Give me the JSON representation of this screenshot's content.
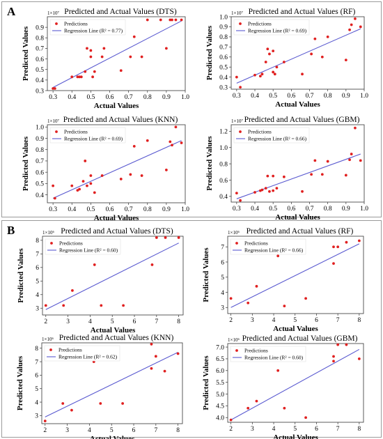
{
  "panels": [
    {
      "label": "A"
    },
    {
      "label": "B"
    }
  ],
  "legend": {
    "predictions": "Predictions"
  },
  "colors": {
    "points": "#e02020",
    "line": "#5a5ad0",
    "frame": "#333333"
  },
  "chart_data": [
    {
      "type": "scatter",
      "title": "Predicted and Actual Values (DTS)",
      "xlabel": "Actual Values",
      "ylabel": "Predicted Values",
      "multiplier": "1×10⁷",
      "regression_label": "Regression Line (R² = 0.77)",
      "xlim": [
        0.27,
        1.0
      ],
      "ylim": [
        0.3,
        1.0
      ],
      "xticks": [
        0.3,
        0.4,
        0.5,
        0.6,
        0.7,
        0.8,
        0.9,
        1.0
      ],
      "xticklabels": [
        "0.3",
        "0.4",
        "0.5",
        "0.6",
        "0.7",
        "0.8",
        "0.9",
        "1.0"
      ],
      "yticks": [
        0.3,
        0.4,
        0.5,
        0.6,
        0.7,
        0.8,
        0.9
      ],
      "yticklabels": [
        "0.3",
        "0.4",
        "0.5",
        "0.6",
        "0.7",
        "0.8",
        "0.9"
      ],
      "points": {
        "x": [
          0.3,
          0.31,
          0.4,
          0.43,
          0.44,
          0.45,
          0.47,
          0.48,
          0.5,
          0.5,
          0.51,
          0.52,
          0.56,
          0.57,
          0.66,
          0.71,
          0.73,
          0.77,
          0.8,
          0.87,
          0.9,
          0.92,
          0.93,
          0.95,
          0.98
        ],
        "y": [
          0.32,
          0.32,
          0.43,
          0.43,
          0.43,
          0.43,
          0.48,
          0.7,
          0.68,
          0.62,
          0.43,
          0.48,
          0.62,
          0.7,
          0.49,
          0.62,
          0.81,
          0.62,
          0.97,
          0.97,
          0.7,
          0.97,
          0.97,
          0.97,
          0.97
        ]
      },
      "line": {
        "x": [
          0.3,
          0.98
        ],
        "y": [
          0.33,
          0.96
        ]
      }
    },
    {
      "type": "scatter",
      "title": "Predicted and Actual Values (RF)",
      "xlabel": "Actual Values",
      "ylabel": "Predicted Values",
      "multiplier": "1×10⁷",
      "regression_label": "Regression Line (R² = 0.69)",
      "xlim": [
        0.27,
        1.0
      ],
      "ylim": [
        0.28,
        1.0
      ],
      "xticks": [
        0.3,
        0.4,
        0.5,
        0.6,
        0.7,
        0.8,
        0.9,
        1.0
      ],
      "xticklabels": [
        "0.3",
        "0.4",
        "0.5",
        "0.6",
        "0.7",
        "0.8",
        "0.9",
        "1.0"
      ],
      "yticks": [
        0.3,
        0.4,
        0.5,
        0.6,
        0.7,
        0.8,
        0.9,
        1.0
      ],
      "yticklabels": [
        "0.3",
        "0.4",
        "0.5",
        "0.6",
        "0.7",
        "0.8",
        "0.9",
        "1.0"
      ],
      "points": {
        "x": [
          0.3,
          0.32,
          0.4,
          0.43,
          0.44,
          0.46,
          0.47,
          0.48,
          0.5,
          0.5,
          0.51,
          0.52,
          0.56,
          0.66,
          0.71,
          0.73,
          0.77,
          0.8,
          0.9,
          0.92,
          0.93,
          0.95,
          0.98
        ],
        "y": [
          0.4,
          0.3,
          0.42,
          0.41,
          0.43,
          0.55,
          0.68,
          0.63,
          0.45,
          0.66,
          0.43,
          0.5,
          0.55,
          0.43,
          0.63,
          0.78,
          0.6,
          0.8,
          0.57,
          0.87,
          0.92,
          0.98,
          0.9
        ]
      },
      "line": {
        "x": [
          0.3,
          0.98
        ],
        "y": [
          0.34,
          0.88
        ]
      }
    },
    {
      "type": "scatter",
      "title": "Predicted and Actual Values (KNN)",
      "xlabel": "Actual Values",
      "ylabel": "Predicted Values",
      "multiplier": "1×10⁷",
      "regression_label": "Regression Line (R² = 0.69)",
      "xlim": [
        0.27,
        1.0
      ],
      "ylim": [
        0.33,
        1.02
      ],
      "xticks": [
        0.3,
        0.4,
        0.5,
        0.6,
        0.7,
        0.8,
        0.9,
        1.0
      ],
      "xticklabels": [
        "0.3",
        "0.4",
        "0.5",
        "0.6",
        "0.7",
        "0.8",
        "0.9",
        "1.0"
      ],
      "yticks": [
        0.4,
        0.5,
        0.6,
        0.7,
        0.8,
        0.9,
        1.0
      ],
      "yticklabels": [
        "0.4",
        "0.5",
        "0.6",
        "0.7",
        "0.8",
        "0.9",
        "1.0"
      ],
      "points": {
        "x": [
          0.3,
          0.31,
          0.4,
          0.43,
          0.44,
          0.46,
          0.47,
          0.48,
          0.5,
          0.5,
          0.52,
          0.56,
          0.66,
          0.71,
          0.73,
          0.77,
          0.8,
          0.9,
          0.92,
          0.93,
          0.95,
          0.98
        ],
        "y": [
          0.48,
          0.37,
          0.48,
          0.44,
          0.45,
          0.52,
          0.7,
          0.48,
          0.57,
          0.5,
          0.42,
          0.57,
          0.54,
          0.58,
          0.83,
          0.57,
          0.88,
          0.62,
          0.87,
          0.84,
          1.0,
          0.86
        ]
      },
      "line": {
        "x": [
          0.3,
          0.98
        ],
        "y": [
          0.37,
          0.88
        ]
      }
    },
    {
      "type": "scatter",
      "title": "Predicted and Actual Values (GBM)",
      "xlabel": "Actual Values",
      "ylabel": "Predicted Values",
      "multiplier": "1×10⁷",
      "regression_label": "Regression Line (R² = 0.66)",
      "xlim": [
        0.27,
        1.0
      ],
      "ylim": [
        0.33,
        1.28
      ],
      "xticks": [
        0.3,
        0.4,
        0.5,
        0.6,
        0.7,
        0.8,
        0.9,
        1.0
      ],
      "xticklabels": [
        "0.3",
        "0.4",
        "0.5",
        "0.6",
        "0.7",
        "0.8",
        "0.9",
        "1.0"
      ],
      "yticks": [
        0.4,
        0.6,
        0.8,
        1.0,
        1.2
      ],
      "yticklabels": [
        "0.4",
        "0.6",
        "0.8",
        "1.0",
        "1.2"
      ],
      "points": {
        "x": [
          0.3,
          0.32,
          0.4,
          0.43,
          0.44,
          0.46,
          0.47,
          0.48,
          0.5,
          0.5,
          0.52,
          0.56,
          0.66,
          0.71,
          0.73,
          0.77,
          0.8,
          0.9,
          0.92,
          0.93,
          0.95,
          0.98
        ],
        "y": [
          0.44,
          0.35,
          0.45,
          0.47,
          0.48,
          0.5,
          0.65,
          0.46,
          0.65,
          0.47,
          0.5,
          0.64,
          0.46,
          0.67,
          0.84,
          0.67,
          0.83,
          0.66,
          0.85,
          0.92,
          1.24,
          0.84
        ]
      },
      "line": {
        "x": [
          0.3,
          0.98
        ],
        "y": [
          0.37,
          0.92
        ]
      }
    },
    {
      "type": "scatter",
      "title": "Predicted and Actual Values (DTS)",
      "xlabel": "Actual Values",
      "ylabel": "Predicted Values",
      "multiplier": "1×10⁶",
      "regression_label": "Regression Line (R² = 0.60)",
      "xlim": [
        1.85,
        8.2
      ],
      "ylim": [
        2.5,
        8.3
      ],
      "xticks": [
        2,
        3,
        4,
        5,
        6,
        7,
        8
      ],
      "xticklabels": [
        "2",
        "3",
        "4",
        "5",
        "6",
        "7",
        "8"
      ],
      "yticks": [
        3,
        4,
        5,
        6,
        7,
        8
      ],
      "yticklabels": [
        "3",
        "4",
        "5",
        "6",
        "7",
        "8"
      ],
      "points": {
        "x": [
          2.0,
          2.8,
          3.2,
          4.2,
          4.5,
          5.5,
          6.8,
          7.0,
          7.4,
          8.0
        ],
        "y": [
          3.2,
          3.2,
          4.3,
          6.2,
          3.2,
          3.2,
          6.2,
          8.2,
          8.2,
          8.2
        ]
      },
      "line": {
        "x": [
          2.0,
          8.0
        ],
        "y": [
          2.9,
          7.8
        ]
      }
    },
    {
      "type": "scatter",
      "title": "Predicted and Actual Values (RF)",
      "xlabel": "Actual Values",
      "ylabel": "Predicted Values",
      "multiplier": "1×10⁶",
      "regression_label": "Regression Line (R² = 0.66)",
      "xlim": [
        1.85,
        8.2
      ],
      "ylim": [
        2.6,
        7.7
      ],
      "xticks": [
        2,
        3,
        4,
        5,
        6,
        7,
        8
      ],
      "xticklabels": [
        "2",
        "3",
        "4",
        "5",
        "6",
        "7",
        "8"
      ],
      "yticks": [
        3,
        4,
        5,
        6,
        7
      ],
      "yticklabels": [
        "3",
        "4",
        "5",
        "6",
        "7"
      ],
      "points": {
        "x": [
          2.0,
          2.8,
          3.2,
          4.2,
          4.5,
          5.5,
          6.8,
          6.8,
          7.0,
          7.4,
          8.0
        ],
        "y": [
          3.6,
          3.3,
          4.4,
          6.4,
          3.1,
          3.6,
          5.9,
          7.0,
          7.0,
          7.3,
          7.4
        ]
      },
      "line": {
        "x": [
          2.0,
          8.0
        ],
        "y": [
          3.0,
          7.2
        ]
      }
    },
    {
      "type": "scatter",
      "title": "Predicted and Actual Values (KNN)",
      "xlabel": "Actual Values",
      "ylabel": "Predicted Values",
      "multiplier": "1×10⁶",
      "regression_label": "Regression Line (R² = 0.62)",
      "xlim": [
        1.85,
        8.2
      ],
      "ylim": [
        2.4,
        8.4
      ],
      "xticks": [
        2,
        3,
        4,
        5,
        6,
        7,
        8
      ],
      "xticklabels": [
        "2",
        "3",
        "4",
        "5",
        "6",
        "7",
        "8"
      ],
      "yticks": [
        3,
        4,
        5,
        6,
        7,
        8
      ],
      "yticklabels": [
        "3",
        "4",
        "5",
        "6",
        "7",
        "8"
      ],
      "points": {
        "x": [
          2.0,
          2.8,
          3.2,
          4.2,
          4.5,
          5.5,
          6.8,
          6.8,
          7.0,
          7.4,
          8.0
        ],
        "y": [
          2.6,
          3.9,
          3.4,
          7.0,
          3.9,
          3.9,
          6.5,
          8.3,
          7.4,
          6.3,
          7.6
        ]
      },
      "line": {
        "x": [
          2.0,
          8.0
        ],
        "y": [
          2.9,
          7.7
        ]
      }
    },
    {
      "type": "scatter",
      "title": "Predicted and Actual Values (GBM)",
      "xlabel": "Actual Values",
      "ylabel": "Predicted Values",
      "multiplier": "1×10⁶",
      "regression_label": "Regression Line (R² = 0.60)",
      "xlim": [
        1.85,
        8.2
      ],
      "ylim": [
        3.8,
        7.15
      ],
      "xticks": [
        2,
        3,
        4,
        5,
        6,
        7,
        8
      ],
      "xticklabels": [
        "2",
        "3",
        "4",
        "5",
        "6",
        "7",
        "8"
      ],
      "yticks": [
        4.0,
        4.5,
        5.0,
        5.5,
        6.0,
        6.5,
        7.0
      ],
      "yticklabels": [
        "4.0",
        "4.5",
        "5.0",
        "5.5",
        "6.0",
        "6.5",
        "7.0"
      ],
      "points": {
        "x": [
          2.0,
          2.8,
          3.2,
          4.2,
          4.5,
          5.5,
          6.8,
          6.8,
          7.0,
          7.4,
          8.0
        ],
        "y": [
          3.9,
          4.4,
          4.7,
          6.0,
          4.4,
          4.0,
          6.4,
          6.6,
          7.1,
          7.1,
          6.5
        ]
      },
      "line": {
        "x": [
          2.0,
          8.0
        ],
        "y": [
          3.9,
          6.9
        ]
      }
    }
  ]
}
